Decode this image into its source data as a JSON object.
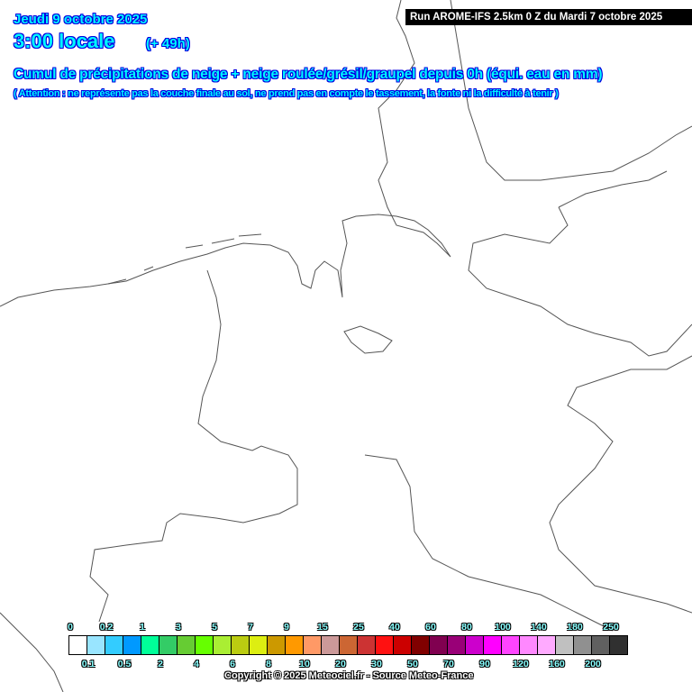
{
  "header": {
    "date": "Jeudi 9 octobre 2025",
    "time": "3:00 locale",
    "lead": "(+ 49h)",
    "title": "Cumul de précipitations de neige + neige roulée/grésil/graupel depuis 0h (équi. eau en mm)",
    "note": "( Attention : ne représente pas la couche finale au sol, ne prend pas en compte le tassement, la fonte ni la difficulté à tenir )",
    "run": "Run AROME-IFS 2.5km 0 Z du Mardi 7 octobre 2025"
  },
  "legend": {
    "labels": [
      "0",
      "0.1",
      "0.2",
      "0.5",
      "1",
      "2",
      "3",
      "4",
      "5",
      "6",
      "7",
      "8",
      "9",
      "10",
      "15",
      "20",
      "25",
      "30",
      "40",
      "50",
      "60",
      "70",
      "80",
      "90",
      "100",
      "120",
      "140",
      "160",
      "180",
      "200",
      "250"
    ],
    "colors": [
      "#ffffff",
      "#99e5ff",
      "#33ccff",
      "#0099ff",
      "#00ff99",
      "#33cc66",
      "#66cc33",
      "#66ff00",
      "#aaee33",
      "#bbcc11",
      "#ddee11",
      "#cc9900",
      "#ff9900",
      "#ff9966",
      "#cc9999",
      "#cc6633",
      "#cc3333",
      "#ff1111",
      "#cc0000",
      "#800000",
      "#800050",
      "#990077",
      "#cc00cc",
      "#ff00ff",
      "#ff44ff",
      "#ff88ff",
      "#ffaaff",
      "#c0c0c0",
      "#909090",
      "#606060",
      "#303030"
    ]
  },
  "map": {
    "border_color": "#606060"
  },
  "copyright": "Copyright © 2025 Meteociel.fr - Source Meteo-France"
}
